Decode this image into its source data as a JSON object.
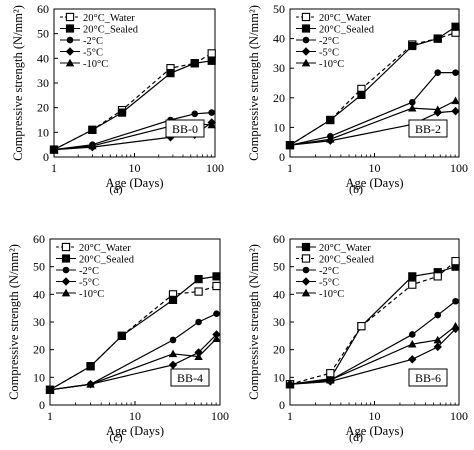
{
  "chart_data": [
    {
      "type": "line",
      "panel_label": "(a)",
      "specimen_label": "BB-0",
      "xlabel": "Age (Days)",
      "ylabel": "Compressive strength (N/mm²)",
      "xscale": "log",
      "xlim": [
        1,
        100
      ],
      "ylim": [
        0,
        60
      ],
      "x_ticks": [
        1,
        10,
        100
      ],
      "y_ticks": [
        0,
        10,
        20,
        30,
        40,
        50,
        60
      ],
      "grid": false,
      "legend_position": "top-left",
      "series": [
        {
          "name": "20°C_Water",
          "marker": "open-square",
          "dashed": true,
          "x": [
            1,
            3,
            7,
            28,
            56,
            91
          ],
          "y": [
            3,
            11,
            19,
            36,
            38,
            42
          ]
        },
        {
          "name": "20°C_Sealed",
          "marker": "filled-square",
          "dashed": false,
          "x": [
            1,
            3,
            7,
            28,
            56,
            91
          ],
          "y": [
            3,
            11,
            18,
            34,
            38,
            39
          ]
        },
        {
          "name": "-2°C",
          "marker": "circle",
          "dashed": false,
          "x": [
            1,
            3,
            28,
            56,
            91
          ],
          "y": [
            3,
            5,
            15,
            17.5,
            18
          ]
        },
        {
          "name": "-5°C",
          "marker": "diamond",
          "dashed": false,
          "x": [
            1,
            3,
            28,
            56,
            91
          ],
          "y": [
            3,
            4,
            8,
            9,
            14
          ]
        },
        {
          "name": "-10°C",
          "marker": "triangle",
          "dashed": false,
          "x": [
            1,
            3,
            28,
            56,
            91
          ],
          "y": [
            3,
            4.5,
            12.5,
            13.5,
            13
          ]
        }
      ]
    },
    {
      "type": "line",
      "panel_label": "(b)",
      "specimen_label": "BB-2",
      "xlabel": "Age (Days)",
      "ylabel": "Compressive strength (N/mm²)",
      "xscale": "log",
      "xlim": [
        1,
        100
      ],
      "ylim": [
        0,
        50
      ],
      "x_ticks": [
        1,
        10,
        100
      ],
      "y_ticks": [
        0,
        10,
        20,
        30,
        40,
        50
      ],
      "grid": false,
      "legend_position": "top-left",
      "series": [
        {
          "name": "20°C_Water",
          "marker": "open-square",
          "dashed": true,
          "x": [
            1,
            3,
            7,
            28,
            56,
            91
          ],
          "y": [
            4,
            12.5,
            23,
            38,
            40,
            42
          ]
        },
        {
          "name": "20°C_Sealed",
          "marker": "filled-square",
          "dashed": false,
          "x": [
            1,
            3,
            7,
            28,
            56,
            91
          ],
          "y": [
            4,
            12.5,
            21,
            37.5,
            40,
            44
          ]
        },
        {
          "name": "-2°C",
          "marker": "circle",
          "dashed": false,
          "x": [
            1,
            3,
            28,
            56,
            91
          ],
          "y": [
            4,
            7,
            18.5,
            28.5,
            28.5
          ]
        },
        {
          "name": "-5°C",
          "marker": "diamond",
          "dashed": false,
          "x": [
            1,
            3,
            28,
            56,
            91
          ],
          "y": [
            4,
            5.5,
            11,
            15,
            15.5
          ]
        },
        {
          "name": "-10°C",
          "marker": "triangle",
          "dashed": false,
          "x": [
            1,
            3,
            28,
            56,
            91
          ],
          "y": [
            4,
            6,
            16.5,
            16,
            19
          ]
        }
      ]
    },
    {
      "type": "line",
      "panel_label": "(c)",
      "specimen_label": "BB-4",
      "xlabel": "Age (Days)",
      "ylabel": "Compressive strength (N/mm²)",
      "xscale": "log",
      "xlim": [
        1,
        100
      ],
      "ylim": [
        0,
        60
      ],
      "x_ticks": [
        1,
        10,
        100
      ],
      "y_ticks": [
        0,
        10,
        20,
        30,
        40,
        50,
        60
      ],
      "grid": false,
      "legend_position": "top-left",
      "series": [
        {
          "name": "20°C_Water",
          "marker": "open-square",
          "dashed": true,
          "x": [
            1,
            3,
            7,
            28,
            56,
            91
          ],
          "y": [
            5.5,
            14,
            25,
            40,
            41,
            43
          ]
        },
        {
          "name": "20°C_Sealed",
          "marker": "filled-square",
          "dashed": false,
          "x": [
            1,
            3,
            7,
            28,
            56,
            91
          ],
          "y": [
            5.5,
            14,
            25,
            38,
            45.5,
            46.5
          ]
        },
        {
          "name": "-2°C",
          "marker": "circle",
          "dashed": false,
          "x": [
            1,
            3,
            28,
            56,
            91
          ],
          "y": [
            5.5,
            7.5,
            23.5,
            30,
            33
          ]
        },
        {
          "name": "-5°C",
          "marker": "diamond",
          "dashed": false,
          "x": [
            1,
            3,
            28,
            56,
            91
          ],
          "y": [
            5.5,
            7.5,
            14.5,
            19,
            25.5
          ]
        },
        {
          "name": "-10°C",
          "marker": "triangle",
          "dashed": false,
          "x": [
            1,
            3,
            28,
            56,
            91
          ],
          "y": [
            5.5,
            7.5,
            18.5,
            17.5,
            24
          ]
        }
      ]
    },
    {
      "type": "line",
      "panel_label": "(d)",
      "specimen_label": "BB-6",
      "xlabel": "Age (Days)",
      "ylabel": "Compressive strength (N/mm²)",
      "xscale": "log",
      "xlim": [
        1,
        100
      ],
      "ylim": [
        0,
        60
      ],
      "x_ticks": [
        1,
        10,
        100
      ],
      "y_ticks": [
        0,
        10,
        20,
        30,
        40,
        50,
        60
      ],
      "grid": false,
      "legend_position": "top-left",
      "series": [
        {
          "name": "20°C_Water",
          "marker": "filled-square",
          "dashed": false,
          "x": [
            1,
            3,
            7,
            28,
            56,
            91
          ],
          "y": [
            7.5,
            9.5,
            28.5,
            46.5,
            48,
            50
          ]
        },
        {
          "name": "20°C_Sealed",
          "marker": "open-square",
          "dashed": true,
          "x": [
            1,
            3,
            7,
            28,
            56,
            91
          ],
          "y": [
            7.5,
            11.5,
            28.5,
            43.5,
            46.5,
            52
          ]
        },
        {
          "name": "-2°C",
          "marker": "circle",
          "dashed": false,
          "x": [
            1,
            3,
            28,
            56,
            91
          ],
          "y": [
            7.5,
            9,
            25.5,
            32.5,
            37.5
          ]
        },
        {
          "name": "-5°C",
          "marker": "diamond",
          "dashed": false,
          "x": [
            1,
            3,
            28,
            56,
            91
          ],
          "y": [
            7.5,
            8.5,
            16.5,
            21,
            27.5
          ]
        },
        {
          "name": "-10°C",
          "marker": "triangle",
          "dashed": false,
          "x": [
            1,
            3,
            28,
            56,
            91
          ],
          "y": [
            7.5,
            9,
            22,
            23.5,
            28.5
          ]
        }
      ]
    }
  ]
}
